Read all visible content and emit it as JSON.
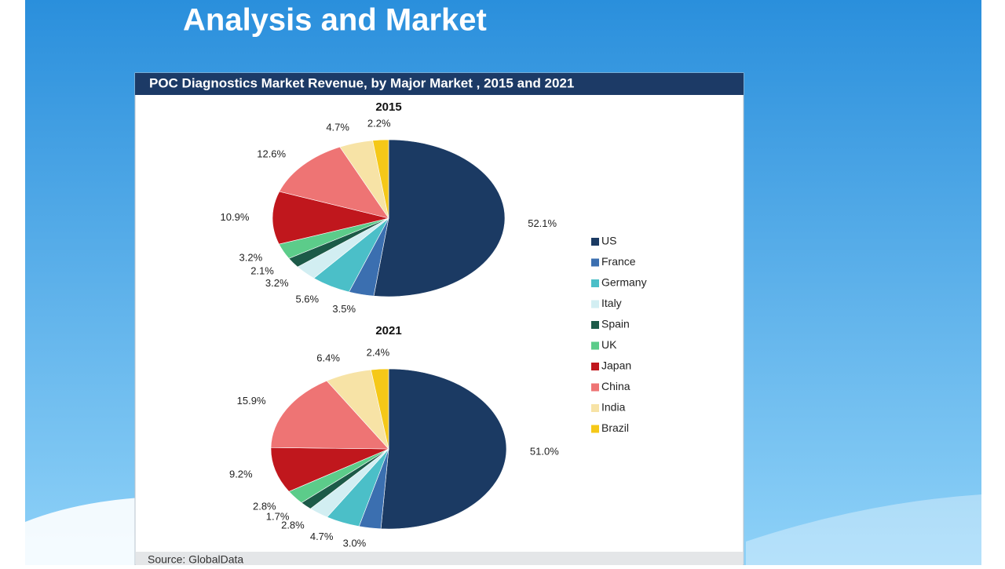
{
  "slide_title": "Analysis and Market",
  "source": "Source: GlobalData",
  "chart_data": {
    "type": "pie",
    "title": "POC Diagnostics Market Revenue, by Major Market , 2015 and 2021",
    "categories": [
      "US",
      "France",
      "Germany",
      "Italy",
      "Spain",
      "UK",
      "Japan",
      "China",
      "India",
      "Brazil"
    ],
    "colors": [
      "#1b3a63",
      "#3b6fb0",
      "#4bbfc8",
      "#d2eef2",
      "#1c5a48",
      "#5ccc8a",
      "#c0171d",
      "#ee7474",
      "#f7e3a6",
      "#f5c818"
    ],
    "series": [
      {
        "name": "2015",
        "values": [
          52.1,
          3.5,
          5.6,
          3.2,
          2.1,
          3.2,
          10.9,
          12.6,
          4.7,
          2.2
        ],
        "value_labels": [
          "52.1%",
          "3.5%",
          "5.6%",
          "3.2%",
          "2.1%",
          "3.2%",
          "10.9%",
          "12.6%",
          "4.7%",
          "2.2%"
        ]
      },
      {
        "name": "2021",
        "values": [
          51.0,
          3.0,
          4.7,
          2.8,
          1.7,
          2.8,
          9.2,
          15.9,
          6.4,
          2.4
        ],
        "value_labels": [
          "51.0%",
          "3.0%",
          "4.7%",
          "2.8%",
          "1.7%",
          "2.8%",
          "9.2%",
          "15.9%",
          "6.4%",
          "2.4%"
        ]
      }
    ]
  }
}
